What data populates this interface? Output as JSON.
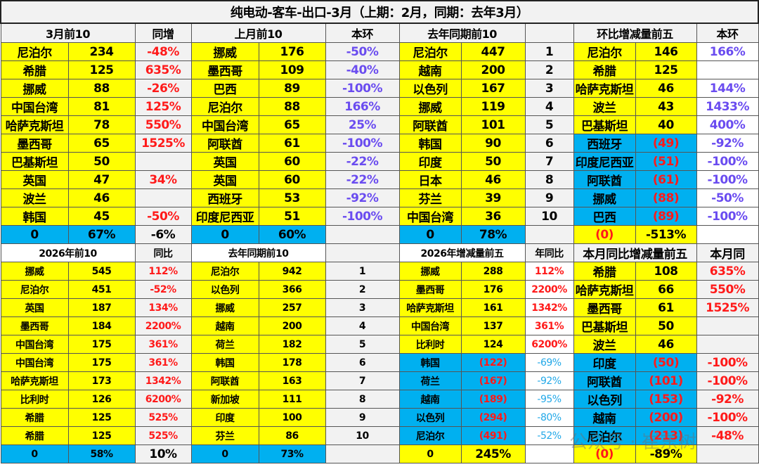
{
  "title": "纯电动-客车-出口-3月（上期：2月，同期：去年3月）",
  "watermark": "公众号 · 崔东树",
  "colors": {
    "yellow": "#ffff00",
    "blue": "#00b0f0",
    "red": "#ff1a1a",
    "purple": "#6a4cf0"
  },
  "top": {
    "headers": [
      "3月前10",
      "同增",
      "上月前10",
      "本环",
      "去年同期前10",
      "",
      "环比增减量前五",
      "本环"
    ],
    "rows": [
      [
        "尼泊尔",
        "234",
        "-48%",
        "挪威",
        "176",
        "-50%",
        "尼泊尔",
        "447",
        "1",
        "尼泊尔",
        "146",
        "166%"
      ],
      [
        "希腊",
        "125",
        "635%",
        "墨西哥",
        "109",
        "-40%",
        "越南",
        "200",
        "2",
        "希腊",
        "125",
        ""
      ],
      [
        "挪威",
        "88",
        "-26%",
        "巴西",
        "89",
        "-100%",
        "以色列",
        "167",
        "3",
        "哈萨克斯坦",
        "46",
        "144%"
      ],
      [
        "中国台湾",
        "81",
        "125%",
        "尼泊尔",
        "88",
        "166%",
        "挪威",
        "119",
        "4",
        "波兰",
        "43",
        "1433%"
      ],
      [
        "哈萨克斯坦",
        "78",
        "550%",
        "中国台湾",
        "65",
        "25%",
        "阿联酋",
        "101",
        "5",
        "巴基斯坦",
        "40",
        "400%"
      ],
      [
        "墨西哥",
        "65",
        "1525%",
        "阿联酋",
        "61",
        "-100%",
        "韩国",
        "90",
        "6",
        "西班牙",
        "(49)",
        "-92%"
      ],
      [
        "巴基斯坦",
        "50",
        "",
        "英国",
        "60",
        "-22%",
        "印度",
        "50",
        "7",
        "印度尼西亚",
        "(51)",
        "-100%"
      ],
      [
        "英国",
        "47",
        "34%",
        "英国",
        "60",
        "-22%",
        "日本",
        "46",
        "8",
        "阿联酋",
        "(61)",
        "-100%"
      ],
      [
        "波兰",
        "46",
        "",
        "西班牙",
        "53",
        "-92%",
        "芬兰",
        "39",
        "9",
        "挪威",
        "(88)",
        "-50%"
      ],
      [
        "韩国",
        "45",
        "-50%",
        "印度尼西亚",
        "51",
        "-100%",
        "中国台湾",
        "36",
        "10",
        "巴西",
        "(89)",
        "-100%"
      ]
    ],
    "summary": [
      "0",
      "67%",
      "-6%",
      "0",
      "60%",
      "",
      "0",
      "78%",
      "",
      "(0)",
      "-513%",
      ""
    ]
  },
  "bottom": {
    "headers": [
      "2026年前10",
      "同比",
      "去年同期前10",
      "",
      "2026年增减量前五",
      "年同比",
      "本月同比增减量前五",
      "本月同"
    ],
    "rows": [
      [
        "挪威",
        "545",
        "112%",
        "尼泊尔",
        "942",
        "1",
        "挪威",
        "288",
        "112%",
        "希腊",
        "108",
        "635%"
      ],
      [
        "尼泊尔",
        "451",
        "-52%",
        "以色列",
        "366",
        "2",
        "墨西哥",
        "176",
        "2200%",
        "哈萨克斯坦",
        "66",
        "550%"
      ],
      [
        "英国",
        "187",
        "134%",
        "挪威",
        "257",
        "3",
        "哈萨克斯坦",
        "161",
        "1342%",
        "墨西哥",
        "61",
        "1525%"
      ],
      [
        "墨西哥",
        "184",
        "2200%",
        "越南",
        "200",
        "4",
        "中国台湾",
        "137",
        "361%",
        "巴基斯坦",
        "50",
        ""
      ],
      [
        "中国台湾",
        "175",
        "361%",
        "荷兰",
        "182",
        "5",
        "比利时",
        "124",
        "6200%",
        "波兰",
        "46",
        ""
      ],
      [
        "中国台湾",
        "175",
        "361%",
        "韩国",
        "178",
        "6",
        "韩国",
        "(122)",
        "-69%",
        "印度",
        "(50)",
        "-100%"
      ],
      [
        "哈萨克斯坦",
        "173",
        "1342%",
        "阿联酋",
        "163",
        "7",
        "荷兰",
        "(167)",
        "-92%",
        "阿联酋",
        "(101)",
        "-100%"
      ],
      [
        "比利时",
        "126",
        "6200%",
        "新加坡",
        "111",
        "8",
        "越南",
        "(189)",
        "-95%",
        "以色列",
        "(153)",
        "-92%"
      ],
      [
        "希腊",
        "125",
        "525%",
        "印度",
        "100",
        "9",
        "以色列",
        "(294)",
        "-80%",
        "越南",
        "(200)",
        "-100%"
      ],
      [
        "希腊",
        "125",
        "525%",
        "芬兰",
        "86",
        "10",
        "尼泊尔",
        "(491)",
        "-52%",
        "尼泊尔",
        "(213)",
        "-48%"
      ]
    ],
    "summary": [
      "0",
      "58%",
      "10%",
      "0",
      "73%",
      "",
      "0",
      "245%",
      "",
      "(0)",
      "-89%",
      ""
    ]
  }
}
